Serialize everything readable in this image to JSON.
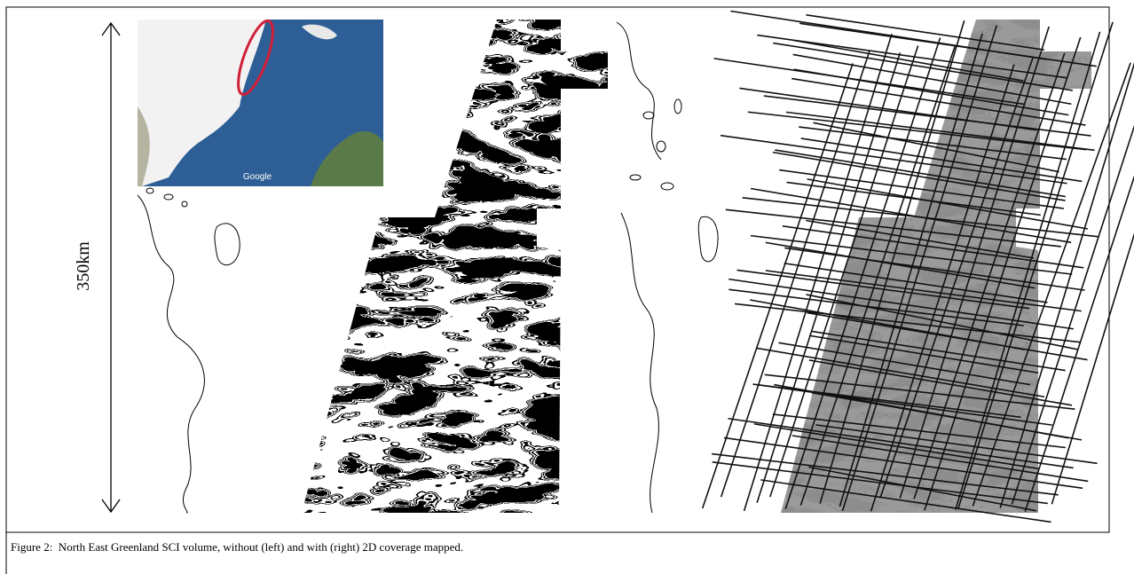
{
  "figure": {
    "scale_label": "350km",
    "inset_label": "Google",
    "caption": "Figure 2:  North East Greenland SCI volume, without (left) and with (right) 2D coverage mapped."
  }
}
